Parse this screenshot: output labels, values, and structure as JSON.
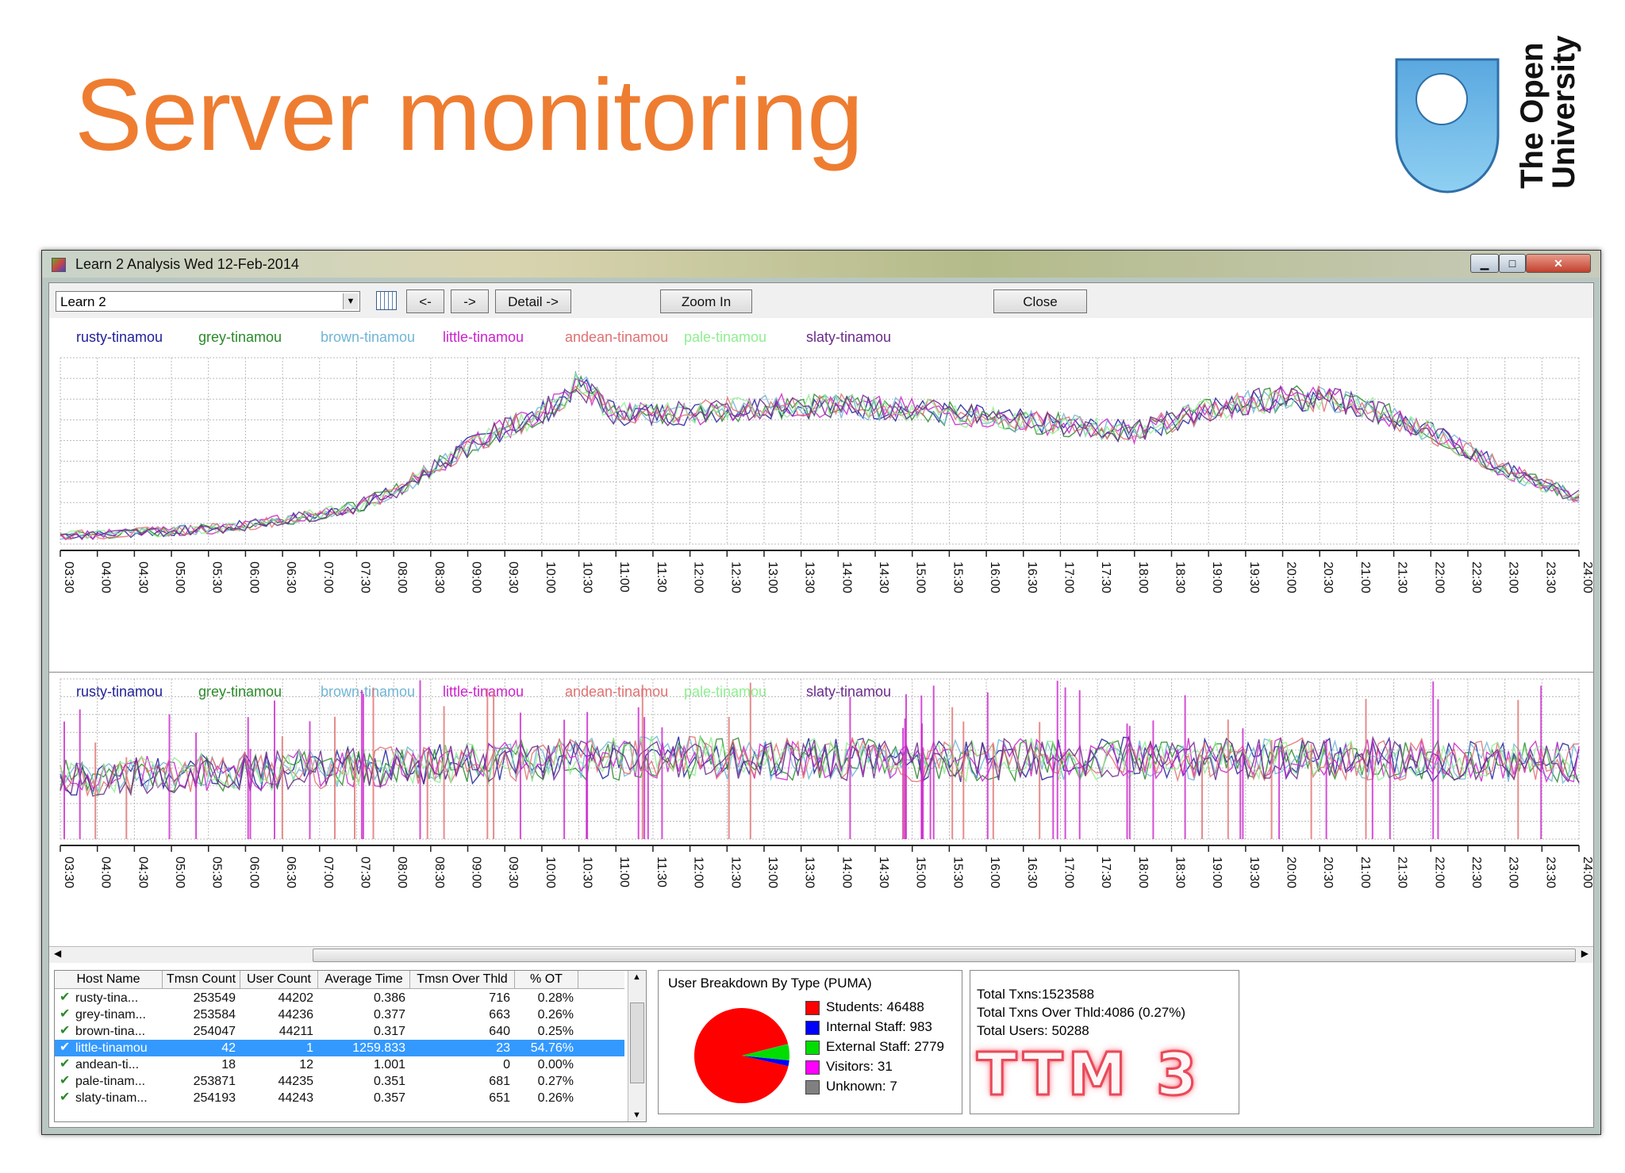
{
  "slide": {
    "title": "Server monitoring",
    "logo_text_line1": "The Open",
    "logo_text_line2": "University"
  },
  "window": {
    "title": "Learn 2 Analysis Wed 12-Feb-2014",
    "controls": [
      "minimize",
      "maximize",
      "close"
    ]
  },
  "toolbar": {
    "combo_value": "Learn 2",
    "prev_label": "<-",
    "next_label": "->",
    "detail_label": "Detail ->",
    "zoom_label": "Zoom In",
    "close_label": "Close"
  },
  "colors": {
    "accent": "#ee7d31",
    "rusty-tinamou": "#1f1f99",
    "grey-tinamou": "#2a8a2a",
    "brown-tinamou": "#6fb5d6",
    "little-tinamou": "#cc22cc",
    "andean-tinamou": "#e07070",
    "pale-tinamou": "#90ee90",
    "slaty-tinamou": "#6a2a8a"
  },
  "chart_data": [
    {
      "type": "line",
      "title": "",
      "series_names": [
        "rusty-tinamou",
        "grey-tinamou",
        "brown-tinamou",
        "little-tinamou",
        "andean-tinamou",
        "pale-tinamou",
        "slaty-tinamou"
      ],
      "x": [
        "03:30",
        "04:00",
        "04:30",
        "05:00",
        "05:30",
        "06:00",
        "06:30",
        "07:00",
        "07:30",
        "08:00",
        "08:30",
        "09:00",
        "09:30",
        "10:00",
        "10:30",
        "11:00",
        "11:30",
        "12:00",
        "12:30",
        "13:00",
        "13:30",
        "14:00",
        "14:30",
        "15:00",
        "15:30",
        "16:00",
        "16:30",
        "17:00",
        "17:30",
        "18:00",
        "18:30",
        "19:00",
        "19:30",
        "20:00",
        "20:30",
        "21:00",
        "21:30",
        "22:00",
        "22:30",
        "23:00",
        "23:30",
        "24:00"
      ],
      "values": [
        5,
        5,
        6,
        7,
        8,
        10,
        13,
        16,
        20,
        28,
        40,
        52,
        62,
        70,
        86,
        70,
        70,
        70,
        72,
        74,
        74,
        74,
        73,
        72,
        70,
        68,
        66,
        64,
        62,
        60,
        66,
        72,
        76,
        78,
        78,
        75,
        68,
        60,
        50,
        40,
        32,
        25
      ],
      "ylim": [
        0,
        100
      ],
      "grid": true,
      "legend": "top"
    },
    {
      "type": "line",
      "title": "",
      "series_names": [
        "rusty-tinamou",
        "grey-tinamou",
        "brown-tinamou",
        "little-tinamou",
        "andean-tinamou",
        "pale-tinamou",
        "slaty-tinamou"
      ],
      "x": [
        "03:30",
        "04:00",
        "04:30",
        "05:00",
        "05:30",
        "06:00",
        "06:30",
        "07:00",
        "07:30",
        "08:00",
        "08:30",
        "09:00",
        "09:30",
        "10:00",
        "10:30",
        "11:00",
        "11:30",
        "12:00",
        "12:30",
        "13:00",
        "13:30",
        "14:00",
        "14:30",
        "15:00",
        "15:30",
        "16:00",
        "16:30",
        "17:00",
        "17:30",
        "18:00",
        "18:30",
        "19:00",
        "19:30",
        "20:00",
        "20:30",
        "21:00",
        "21:30",
        "22:00",
        "22:30",
        "23:00",
        "23:30",
        "24:00"
      ],
      "values": [
        40,
        38,
        40,
        41,
        42,
        42,
        43,
        44,
        45,
        45,
        46,
        47,
        48,
        49,
        50,
        50,
        51,
        51,
        50,
        51,
        50,
        50,
        50,
        49,
        49,
        49,
        50,
        50,
        50,
        51,
        50,
        50,
        49,
        50,
        50,
        50,
        50,
        49,
        49,
        48,
        48,
        48
      ],
      "ylim": [
        0,
        100
      ],
      "grid": true,
      "legend": "top"
    }
  ],
  "table": {
    "columns": [
      "Host Name",
      "Tmsn Count",
      "User Count",
      "Average Time",
      "Tmsn Over Thld",
      "% OT"
    ],
    "rows": [
      [
        "rusty-tina...",
        "253549",
        "44202",
        "0.386",
        "716",
        "0.28%"
      ],
      [
        "grey-tinam...",
        "253584",
        "44236",
        "0.377",
        "663",
        "0.26%"
      ],
      [
        "brown-tina...",
        "254047",
        "44211",
        "0.317",
        "640",
        "0.25%"
      ],
      [
        "little-tinamou",
        "42",
        "1",
        "1259.833",
        "23",
        "54.76%"
      ],
      [
        "andean-ti...",
        "18",
        "12",
        "1.001",
        "0",
        "0.00%"
      ],
      [
        "pale-tinam...",
        "253871",
        "44235",
        "0.351",
        "681",
        "0.27%"
      ],
      [
        "slaty-tinam...",
        "254193",
        "44243",
        "0.357",
        "651",
        "0.26%"
      ]
    ],
    "selected_row": 3
  },
  "breakdown": {
    "title": "User Breakdown By Type (PUMA)",
    "items": [
      {
        "label": "Students: 46488",
        "value": 46488,
        "color": "#ff0000"
      },
      {
        "label": "Internal Staff: 983",
        "value": 983,
        "color": "#0000ff"
      },
      {
        "label": "External Staff: 2779",
        "value": 2779,
        "color": "#00dd00"
      },
      {
        "label": "Visitors: 31",
        "value": 31,
        "color": "#ff00ff"
      },
      {
        "label": "Unknown: 7",
        "value": 7,
        "color": "#808080"
      }
    ]
  },
  "totals": {
    "txns": "Total Txns:1523588",
    "over": "Total Txns Over Thld:4086 (0.27%)",
    "users": "Total Users: 50288",
    "brand": "TTM 3"
  }
}
